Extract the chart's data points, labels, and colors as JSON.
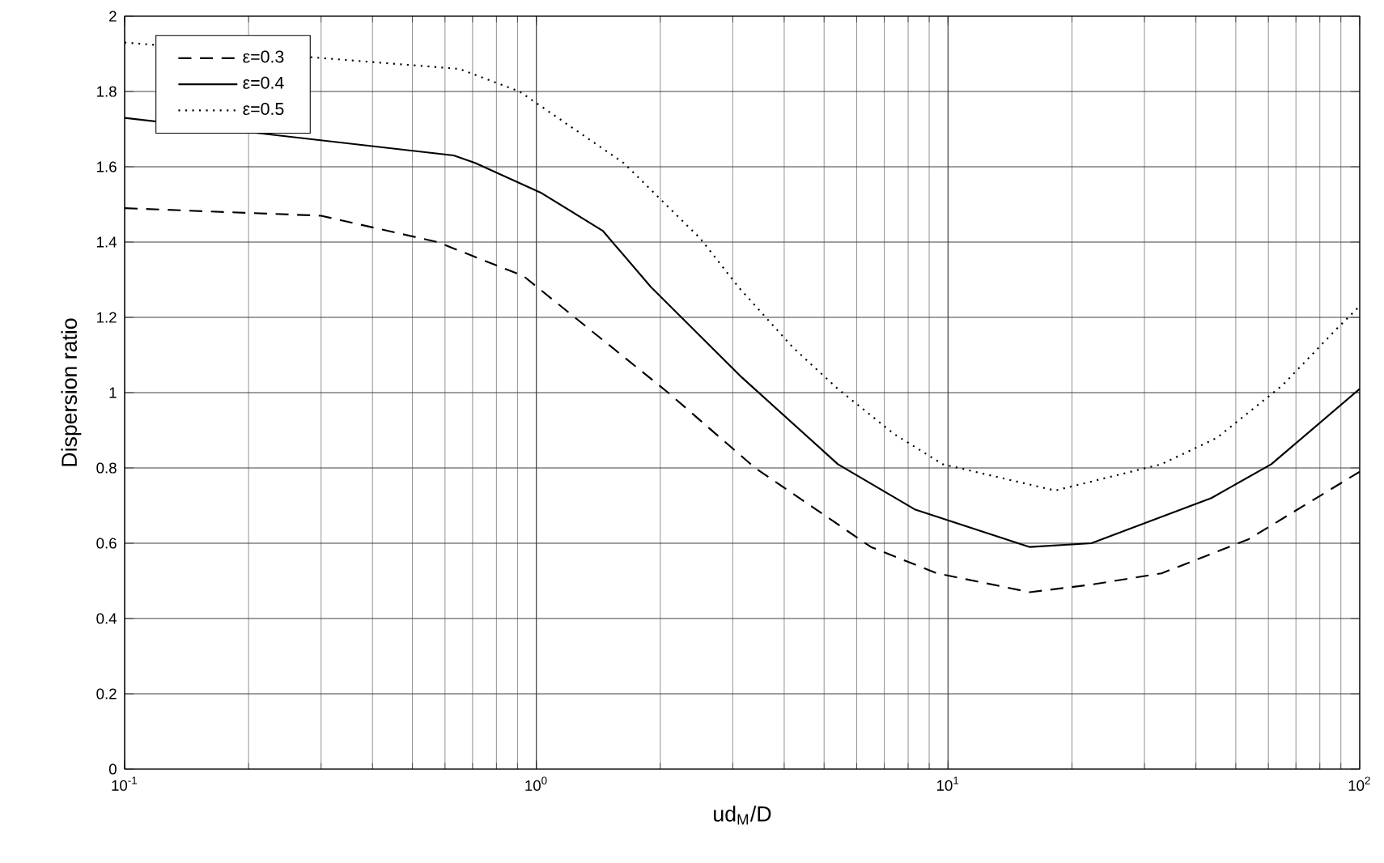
{
  "chart_data": {
    "type": "line",
    "xlabel": "ud$_{M}$/D",
    "ylabel": "Dispersion ratio",
    "log": "x",
    "grid": true,
    "legend": "top left",
    "xlim": [
      0.1,
      100
    ],
    "ylim": [
      0,
      2
    ],
    "xticks": [
      {
        "value": 0.1,
        "label": "10$^{-1}$"
      },
      {
        "value": 1,
        "label": "10$^{0}$"
      },
      {
        "value": 10,
        "label": "10$^{1}$"
      },
      {
        "value": 100,
        "label": "10$^{2}$"
      }
    ],
    "yticks": [
      0,
      0.2,
      0.4,
      0.6,
      0.8,
      1,
      1.2,
      1.4,
      1.6,
      1.8,
      2
    ],
    "series": [
      {
        "name": "ε=0.3",
        "color": "#000000",
        "line_style": "dashed",
        "x": [
          0.1,
          0.3,
          0.575,
          0.93,
          2.09,
          3.4,
          6.5,
          9.4,
          15.8,
          22.3,
          33,
          53.6,
          100
        ],
        "values": [
          1.49,
          1.47,
          1.4,
          1.31,
          1.0,
          0.8,
          0.59,
          0.52,
          0.47,
          0.49,
          0.52,
          0.61,
          0.79
        ]
      },
      {
        "name": "ε=0.4",
        "color": "#000000",
        "line_style": "solid",
        "x": [
          0.1,
          0.63,
          0.71,
          1.03,
          1.45,
          1.9,
          3.16,
          5.4,
          8.3,
          15.8,
          22.3,
          43.6,
          61,
          100
        ],
        "values": [
          1.73,
          1.63,
          1.61,
          1.53,
          1.43,
          1.28,
          1.04,
          0.81,
          0.69,
          0.59,
          0.6,
          0.72,
          0.81,
          1.01
        ]
      },
      {
        "name": "ε=0.5",
        "color": "#000000",
        "line_style": "dotted",
        "x": [
          0.1,
          0.65,
          0.91,
          1.63,
          2.5,
          3.1,
          4.2,
          5.4,
          7.4,
          9.7,
          18.2,
          33,
          45,
          65,
          88,
          100
        ],
        "values": [
          1.93,
          1.86,
          1.8,
          1.61,
          1.41,
          1.28,
          1.12,
          1.01,
          0.89,
          0.81,
          0.74,
          0.81,
          0.88,
          1.02,
          1.17,
          1.23
        ]
      }
    ]
  }
}
